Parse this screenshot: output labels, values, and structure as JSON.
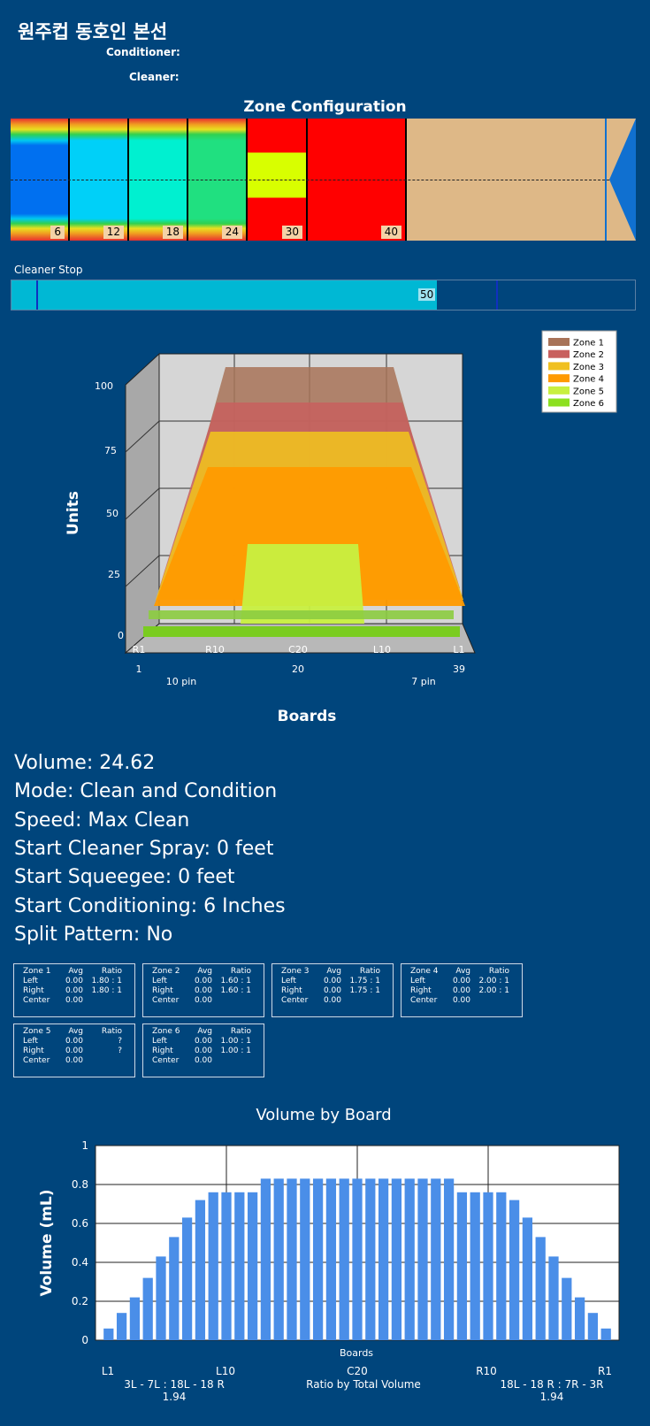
{
  "header": {
    "title": "원주컵 동호인 본선",
    "conditioner_label": "Conditioner:",
    "cleaner_label": "Cleaner:"
  },
  "zone_config": {
    "title": "Zone Configuration",
    "markers": [
      "6",
      "12",
      "18",
      "24",
      "30",
      "40"
    ]
  },
  "cleaner_stop": {
    "label": "Cleaner Stop",
    "value": "50"
  },
  "chart3d": {
    "legend": [
      "Zone 1",
      "Zone 2",
      "Zone 3",
      "Zone 4",
      "Zone 5",
      "Zone 6"
    ],
    "colors": [
      "#a87358",
      "#c8605e",
      "#f0c020",
      "#ff9a00",
      "#c8f040",
      "#8ce020"
    ],
    "ylabel": "Units",
    "yticks": [
      "100",
      "75",
      "50",
      "25",
      "0"
    ],
    "xticks": [
      "R1",
      "R10",
      "C20",
      "L10",
      "L1"
    ],
    "xnums": [
      "1",
      "20",
      "39"
    ],
    "pins": [
      "10 pin",
      "7 pin"
    ],
    "xlabel": "Boards"
  },
  "info": [
    "Volume: 24.62",
    "Mode: Clean and Condition",
    "Speed: Max Clean",
    "Start Cleaner Spray: 0 feet",
    "Start Squeegee: 0 feet",
    "Start Conditioning: 6 Inches",
    "Split Pattern: No"
  ],
  "zones": [
    {
      "name": "Zone 1",
      "left_avg": "0.00",
      "left_ratio": "1.80 : 1",
      "right_avg": "0.00",
      "right_ratio": "1.80 : 1",
      "center": "0.00"
    },
    {
      "name": "Zone 2",
      "left_avg": "0.00",
      "left_ratio": "1.60 : 1",
      "right_avg": "0.00",
      "right_ratio": "1.60 : 1",
      "center": "0.00"
    },
    {
      "name": "Zone 3",
      "left_avg": "0.00",
      "left_ratio": "1.75 : 1",
      "right_avg": "0.00",
      "right_ratio": "1.75 : 1",
      "center": "0.00"
    },
    {
      "name": "Zone 4",
      "left_avg": "0.00",
      "left_ratio": "2.00 : 1",
      "right_avg": "0.00",
      "right_ratio": "2.00 : 1",
      "center": "0.00"
    },
    {
      "name": "Zone 5",
      "left_avg": "0.00",
      "left_ratio": "?",
      "right_avg": "0.00",
      "right_ratio": "?",
      "center": "0.00"
    },
    {
      "name": "Zone 6",
      "left_avg": "0.00",
      "left_ratio": "1.00 : 1",
      "right_avg": "0.00",
      "right_ratio": "1.00 : 1",
      "center": "0.00"
    }
  ],
  "zone_headers": {
    "avg": "Avg",
    "ratio": "Ratio",
    "left": "Left",
    "right": "Right",
    "center": "Center"
  },
  "chart_data": {
    "type": "bar",
    "title": "Volume by Board",
    "xlabel": "Boards",
    "ylabel": "Volume (mL)",
    "ylim": [
      0,
      1
    ],
    "yticks": [
      "0",
      "0.2",
      "0.4",
      "0.6",
      "0.8",
      "1"
    ],
    "color": "#4a8ee8",
    "values": [
      0.06,
      0.14,
      0.22,
      0.32,
      0.43,
      0.53,
      0.63,
      0.72,
      0.76,
      0.76,
      0.76,
      0.76,
      0.83,
      0.83,
      0.83,
      0.83,
      0.83,
      0.83,
      0.83,
      0.83,
      0.83,
      0.83,
      0.83,
      0.83,
      0.83,
      0.83,
      0.83,
      0.76,
      0.76,
      0.76,
      0.76,
      0.72,
      0.63,
      0.53,
      0.43,
      0.32,
      0.22,
      0.14,
      0.06
    ],
    "xticks": [
      "L1",
      "L10",
      "C20",
      "R10",
      "R1"
    ],
    "footer": {
      "left_ratio": "3L - 7L : 18L - 18 R",
      "left_value": "1.94",
      "center": "Ratio by Total Volume",
      "right_ratio": "18L - 18 R : 7R - 3R",
      "right_value": "1.94"
    }
  }
}
